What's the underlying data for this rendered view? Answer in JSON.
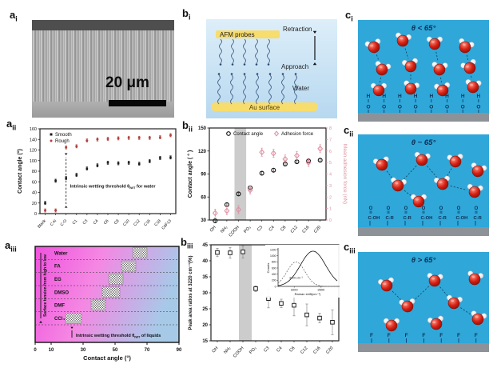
{
  "figure": {
    "panel_labels": {
      "ai": [
        "a",
        "i"
      ],
      "aii": [
        "a",
        "ii"
      ],
      "aiii": [
        "a",
        "iii"
      ],
      "bi": [
        "b",
        "i"
      ],
      "bii": [
        "b",
        "ii"
      ],
      "biii": [
        "b",
        "iii"
      ],
      "ci": [
        "c",
        "i"
      ],
      "cii": [
        "c",
        "ii"
      ],
      "ciii": [
        "c",
        "iii"
      ]
    }
  },
  "sem": {
    "scale_label": "20 μm"
  },
  "afm_schematic": {
    "probes_label": "AFM probes",
    "retraction": "Retraction",
    "approach": "Approach",
    "water": "Water",
    "surface": "Au surface"
  },
  "molecular_panels": {
    "ci": {
      "title": "θ < 65°",
      "surface_top": "H",
      "surface_bottom": "O",
      "columns": 8
    },
    "cii": {
      "title": "θ ~ 65°",
      "top_atom": "O",
      "groups": [
        "C-OH",
        "C-R",
        "C-R",
        "C-OH",
        "C-R",
        "C-OH",
        "C-R"
      ]
    },
    "ciii": {
      "title": "θ > 65°",
      "atom": "F",
      "columns": 7
    }
  },
  "colors": {
    "smooth": "#1a1a1a",
    "rough": "#b2403c",
    "adhesion": "#dd93a2",
    "band": "#cccccc",
    "panel_blue": "#2fa7d9",
    "strip_gray": "#8d9298",
    "navy": "#0d2f55",
    "magenta": "#ef52de",
    "lightblue": "#a7c9e8"
  },
  "chart_data": [
    {
      "id": "aii",
      "type": "scatter",
      "categories": [
        "Blank",
        "C-N",
        "C-O",
        "C1",
        "C3",
        "C4",
        "C6",
        "C8",
        "C10",
        "C12",
        "C16",
        "C18",
        "C6F13"
      ],
      "series": [
        {
          "name": "Smooth",
          "marker": "square",
          "color": "#1a1a1a",
          "error": 3,
          "values": [
            20,
            62,
            67,
            73,
            85,
            91,
            96,
            95,
            96,
            94,
            99,
            105,
            106
          ]
        },
        {
          "name": "Rough",
          "marker": "circle",
          "color": "#b2403c",
          "error": 3,
          "values": [
            6,
            6,
            125,
            127,
            138,
            140,
            141,
            142,
            143,
            143,
            143,
            144,
            148
          ]
        }
      ],
      "ylabel": "Contact angle (°)",
      "ylim": [
        0,
        160
      ],
      "yticks": [
        0,
        20,
        40,
        60,
        80,
        100,
        120,
        140,
        160
      ],
      "annotation": {
        "text": "Intrinsic wetting threshold θ[IWT] for water",
        "category_index": 2,
        "y_from": 15,
        "y_to": 110,
        "text_y": 52
      }
    },
    {
      "id": "aiii",
      "type": "liquid_rows",
      "rows": [
        {
          "label": "Water",
          "range": [
            61,
            70
          ]
        },
        {
          "label": "FA",
          "range": [
            54,
            63
          ]
        },
        {
          "label": "EG",
          "range": [
            46,
            55
          ]
        },
        {
          "label": "DMSO",
          "range": [
            42,
            53
          ]
        },
        {
          "label": "DMF",
          "range": [
            35,
            44
          ]
        },
        {
          "label": "CCl₄",
          "range": [
            19,
            29
          ]
        }
      ],
      "xlabel": "Contact angle (°)",
      "xlim": [
        0,
        90
      ],
      "xticks": [
        0,
        10,
        30,
        50,
        70,
        90
      ],
      "side_label": "Surface tension from high to low",
      "annotation": {
        "text": "Intrinsic wetting threshold θ[IWT] of liquids",
        "arrow_x": 23
      }
    },
    {
      "id": "bii",
      "type": "dual_scatter",
      "categories": [
        "OH",
        "NH₂",
        "COOH",
        "PO₃",
        "C3",
        "C4",
        "C6",
        "C12",
        "C16",
        "C20"
      ],
      "left": {
        "name": "Contact angle",
        "marker": "circle",
        "color": "#111111",
        "error": 2,
        "values": [
          29,
          50,
          64,
          72,
          91,
          95,
          103,
          106,
          107,
          108
        ],
        "ylabel": "Contact angle ( ° )",
        "ylim": [
          30,
          150
        ],
        "ticks": [
          30,
          60,
          90,
          120,
          150
        ]
      },
      "right": {
        "name": "Adhesion force",
        "marker": "diamond",
        "color": "#dd93a2",
        "error": 0.35,
        "values": [
          0.6,
          0.8,
          0.9,
          2.6,
          5.9,
          5.8,
          5.3,
          5.6,
          5.0,
          6.2
        ],
        "ylabel": "Mean adhesion force (nN)",
        "ylim": [
          0,
          8
        ],
        "ticks": [
          0,
          1,
          2,
          3,
          4,
          5,
          6,
          7,
          8
        ]
      },
      "band_categories": [
        2,
        3
      ]
    },
    {
      "id": "biii",
      "type": "error_scatter",
      "categories": [
        "OH",
        "NH₂",
        "COOH",
        "PO₃",
        "C3",
        "C4",
        "C6",
        "C12",
        "C16",
        "C20"
      ],
      "values": [
        42.6,
        42.5,
        42.8,
        31.3,
        28.2,
        26.7,
        26.1,
        23.1,
        22.1,
        20.8
      ],
      "errors": [
        1.3,
        1.7,
        1.9,
        0.9,
        2.9,
        1.3,
        3.3,
        3.4,
        1.5,
        3.9
      ],
      "ylabel": "Peak area ratios at 3220 cm⁻¹(%)",
      "ylim": [
        15,
        45
      ],
      "yticks": [
        15,
        20,
        25,
        30,
        35,
        40,
        45
      ],
      "band_categories": [
        2,
        3
      ],
      "inset": {
        "ylabel": "Counts",
        "yticks": [
          0,
          200,
          400,
          600,
          800,
          1000,
          1200
        ],
        "xlabel": "Raman shift(cm⁻¹)",
        "xticks": [
          3200,
          3500
        ],
        "xlim": [
          3020,
          3680
        ],
        "peak_label": "3220 cm⁻¹",
        "solid_peak": {
          "center": 3410,
          "sigma": 140,
          "amp": 1150
        },
        "dashed_peak": {
          "center": 3220,
          "sigma": 100,
          "amp": 800
        }
      }
    }
  ]
}
